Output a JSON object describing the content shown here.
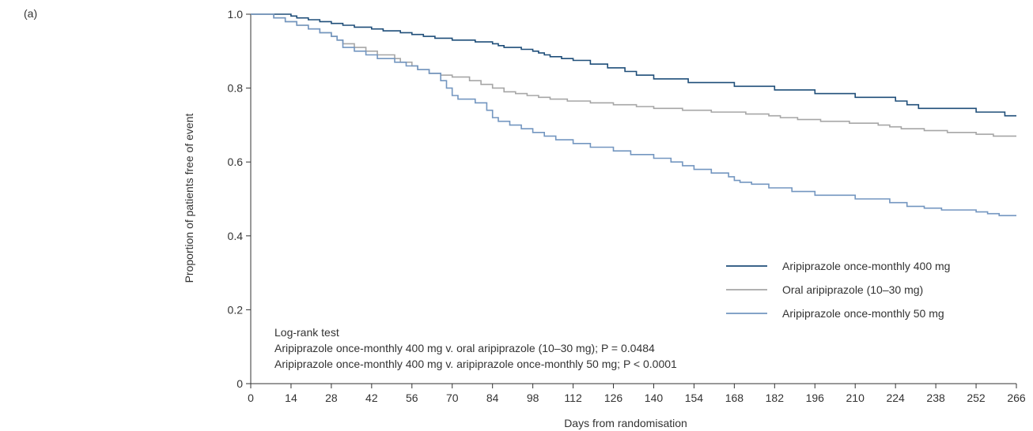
{
  "panel_label": "(a)",
  "chart_data": {
    "type": "line",
    "title": "",
    "xlabel": "Days from randomisation",
    "ylabel": "Proportion of patients free of event",
    "xlim": [
      0,
      266
    ],
    "ylim": [
      0,
      1.0
    ],
    "x_ticks": [
      0,
      14,
      28,
      42,
      56,
      70,
      84,
      98,
      112,
      126,
      140,
      154,
      168,
      182,
      196,
      210,
      224,
      238,
      252,
      266
    ],
    "y_ticks": [
      {
        "value": 0,
        "label": "0"
      },
      {
        "value": 0.2,
        "label": "0.2"
      },
      {
        "value": 0.4,
        "label": "0.4"
      },
      {
        "value": 0.6,
        "label": "0.6"
      },
      {
        "value": 0.8,
        "label": "0.8"
      },
      {
        "value": 1.0,
        "label": "1.0"
      }
    ],
    "grid": false,
    "legend_position": "right",
    "series": [
      {
        "name": "Aripiprazole once-monthly 400 mg",
        "color": "#1f4e79",
        "step": true,
        "x": [
          0,
          14,
          16,
          20,
          24,
          28,
          32,
          36,
          42,
          46,
          52,
          56,
          60,
          64,
          70,
          78,
          84,
          86,
          88,
          94,
          98,
          100,
          102,
          104,
          108,
          112,
          118,
          124,
          130,
          134,
          140,
          152,
          168,
          182,
          196,
          210,
          224,
          228,
          232,
          252,
          262,
          266
        ],
        "y": [
          1.0,
          0.995,
          0.99,
          0.985,
          0.98,
          0.975,
          0.97,
          0.965,
          0.96,
          0.955,
          0.95,
          0.945,
          0.94,
          0.935,
          0.93,
          0.925,
          0.92,
          0.915,
          0.91,
          0.905,
          0.9,
          0.895,
          0.89,
          0.885,
          0.88,
          0.875,
          0.865,
          0.855,
          0.845,
          0.835,
          0.825,
          0.815,
          0.805,
          0.795,
          0.785,
          0.775,
          0.765,
          0.755,
          0.745,
          0.735,
          0.725,
          0.725
        ]
      },
      {
        "name": "Oral aripiprazole (10–30 mg)",
        "color": "#a6a6a6",
        "step": true,
        "x": [
          0,
          8,
          12,
          16,
          20,
          24,
          28,
          30,
          32,
          36,
          40,
          44,
          50,
          52,
          56,
          58,
          62,
          66,
          70,
          76,
          80,
          84,
          88,
          92,
          96,
          100,
          104,
          110,
          118,
          126,
          134,
          140,
          150,
          160,
          172,
          180,
          184,
          190,
          198,
          208,
          218,
          222,
          226,
          234,
          242,
          252,
          258,
          266
        ],
        "y": [
          1.0,
          0.99,
          0.98,
          0.97,
          0.96,
          0.95,
          0.94,
          0.93,
          0.92,
          0.91,
          0.9,
          0.89,
          0.88,
          0.87,
          0.86,
          0.85,
          0.84,
          0.835,
          0.83,
          0.82,
          0.81,
          0.8,
          0.79,
          0.785,
          0.78,
          0.775,
          0.77,
          0.765,
          0.76,
          0.755,
          0.75,
          0.745,
          0.74,
          0.735,
          0.73,
          0.725,
          0.72,
          0.715,
          0.71,
          0.705,
          0.7,
          0.695,
          0.69,
          0.685,
          0.68,
          0.675,
          0.67,
          0.67
        ]
      },
      {
        "name": "Aripiprazole once-monthly 50 mg",
        "color": "#7396c0",
        "step": true,
        "x": [
          0,
          8,
          12,
          16,
          20,
          24,
          28,
          30,
          32,
          36,
          40,
          44,
          50,
          54,
          58,
          62,
          66,
          68,
          70,
          72,
          78,
          82,
          84,
          86,
          90,
          94,
          98,
          102,
          106,
          112,
          118,
          126,
          132,
          140,
          146,
          150,
          154,
          160,
          166,
          168,
          170,
          174,
          180,
          188,
          196,
          210,
          222,
          228,
          234,
          240,
          252,
          256,
          260,
          266
        ],
        "y": [
          1.0,
          0.99,
          0.98,
          0.97,
          0.96,
          0.95,
          0.94,
          0.93,
          0.91,
          0.9,
          0.89,
          0.88,
          0.87,
          0.86,
          0.85,
          0.84,
          0.82,
          0.8,
          0.78,
          0.77,
          0.76,
          0.74,
          0.72,
          0.71,
          0.7,
          0.69,
          0.68,
          0.67,
          0.66,
          0.65,
          0.64,
          0.63,
          0.62,
          0.61,
          0.6,
          0.59,
          0.58,
          0.57,
          0.56,
          0.55,
          0.545,
          0.54,
          0.53,
          0.52,
          0.51,
          0.5,
          0.49,
          0.48,
          0.475,
          0.47,
          0.465,
          0.46,
          0.455,
          0.455
        ]
      }
    ],
    "annotations": [
      "Log-rank test",
      "Aripiprazole once-monthly 400 mg v. oral aripiprazole (10–30 mg); P = 0.0484",
      "Aripiprazole once-monthly 400 mg v. aripiprazole once-monthly 50 mg; P < 0.0001"
    ]
  }
}
